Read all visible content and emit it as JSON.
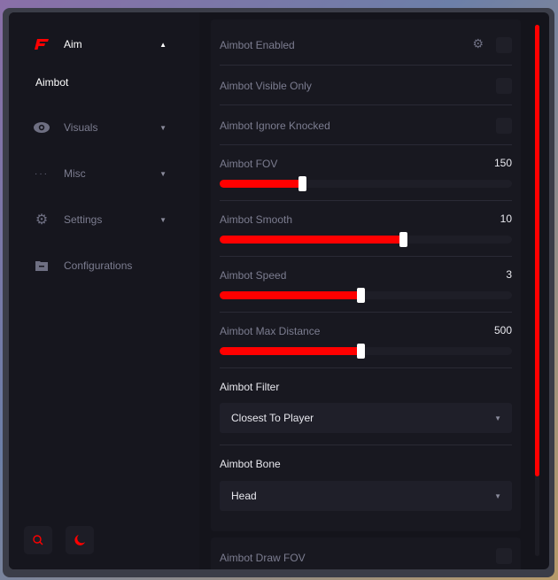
{
  "accent": "#ff0000",
  "sidebar": {
    "logo_icon": "brand-logo-icon",
    "items": [
      {
        "label": "Aim",
        "icon": "logo-icon",
        "expanded": true
      },
      {
        "label": "Visuals",
        "icon": "eye-icon"
      },
      {
        "label": "Misc",
        "icon": "dots-icon"
      },
      {
        "label": "Settings",
        "icon": "gear-icon"
      },
      {
        "label": "Configurations",
        "icon": "folder-icon"
      }
    ],
    "subitem": "Aimbot",
    "bottom_buttons": [
      "search-icon",
      "moon-icon"
    ]
  },
  "main": {
    "toggles": [
      {
        "label": "Aimbot Enabled",
        "checked": false,
        "has_settings": true
      },
      {
        "label": "Aimbot Visible Only",
        "checked": false
      },
      {
        "label": "Aimbot Ignore Knocked",
        "checked": false
      }
    ],
    "sliders": [
      {
        "label": "Aimbot FOV",
        "value": "150",
        "fill": 0.285
      },
      {
        "label": "Aimbot Smooth",
        "value": "10",
        "fill": 0.63
      },
      {
        "label": "Aimbot Speed",
        "value": "3",
        "fill": 0.485
      },
      {
        "label": "Aimbot Max Distance",
        "value": "500",
        "fill": 0.485
      }
    ],
    "dropdowns": [
      {
        "label": "Aimbot Filter",
        "value": "Closest To Player"
      },
      {
        "label": "Aimbot Bone",
        "value": "Head"
      }
    ],
    "next_card": {
      "label": "Aimbot Draw FOV",
      "checked": false
    },
    "scroll_fraction": 0.85
  }
}
